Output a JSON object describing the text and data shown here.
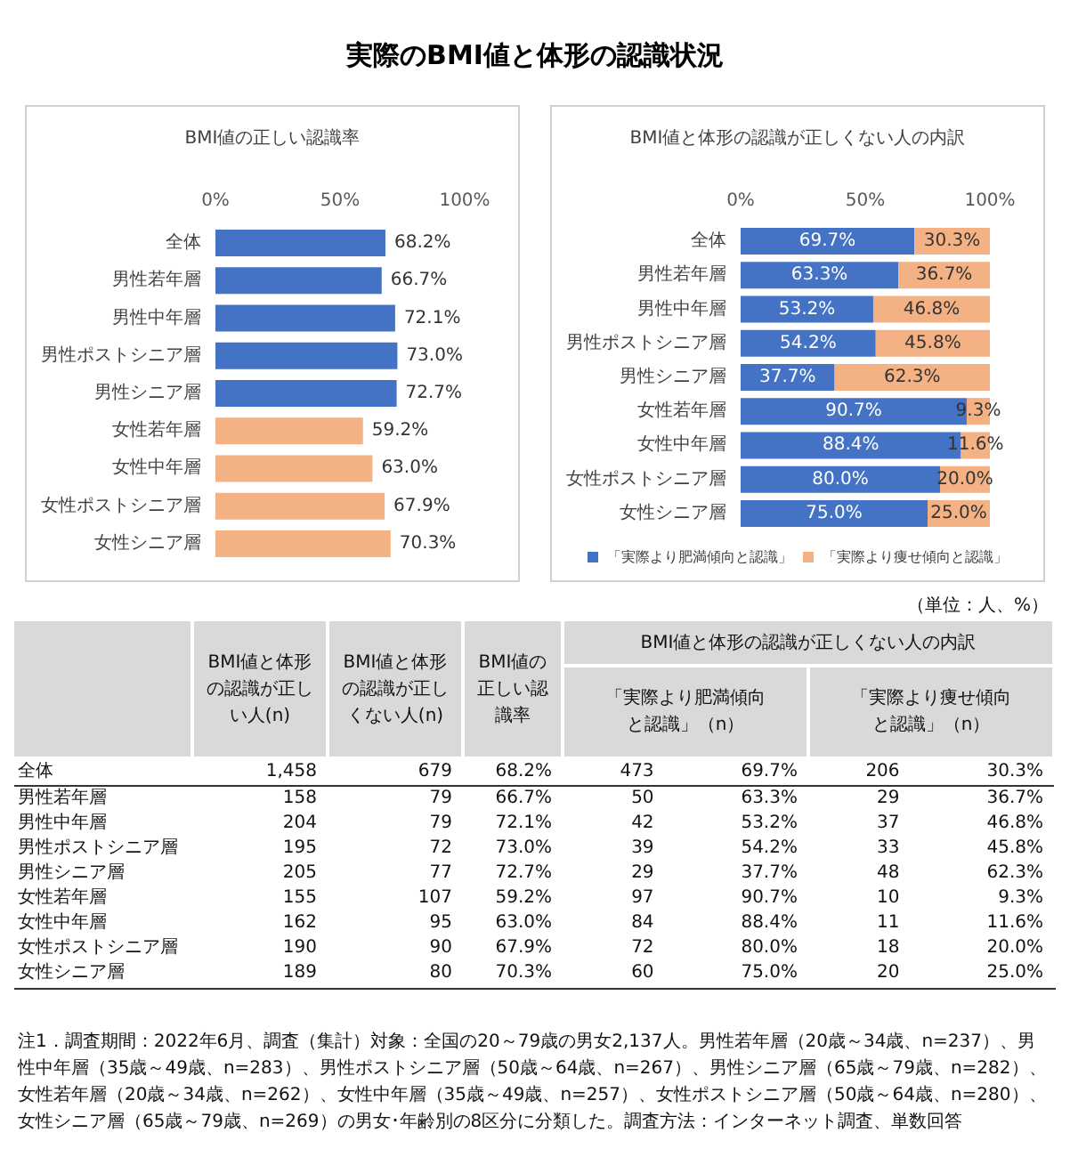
{
  "chart_data": [
    {
      "type": "other",
      "title": "実際のBMI値と体形の認識状況"
    },
    {
      "type": "bar",
      "orientation": "horizontal",
      "title": "BMI値の正しい認識率",
      "categories": [
        "全体",
        "男性若年層",
        "男性中年層",
        "男性ポストシニア層",
        "男性シニア層",
        "女性若年層",
        "女性中年層",
        "女性ポストシニア層",
        "女性シニア層"
      ],
      "values": [
        68.2,
        66.7,
        72.1,
        73.0,
        72.7,
        59.2,
        63.0,
        67.9,
        70.3
      ],
      "colors": [
        "#4472c4",
        "#4472c4",
        "#4472c4",
        "#4472c4",
        "#4472c4",
        "#f4b183",
        "#f4b183",
        "#f4b183",
        "#f4b183"
      ],
      "value_labels": [
        "68.2%",
        "66.7%",
        "72.1%",
        "73.0%",
        "72.7%",
        "59.2%",
        "63.0%",
        "67.9%",
        "70.3%"
      ],
      "xlim": [
        0,
        100
      ],
      "xticks": [
        {
          "value": 0,
          "label": "0%"
        },
        {
          "value": 50,
          "label": "50%"
        },
        {
          "value": 100,
          "label": "100%"
        }
      ],
      "grid": false,
      "legend": false
    },
    {
      "type": "bar",
      "orientation": "horizontal",
      "stacked": true,
      "title": "BMI値と体形の認識が正しくない人の内訳",
      "categories": [
        "全体",
        "男性若年層",
        "男性中年層",
        "男性ポストシニア層",
        "男性シニア層",
        "女性若年層",
        "女性中年層",
        "女性ポストシニア層",
        "女性シニア層"
      ],
      "series": [
        {
          "name": "「実際より肥満傾向と認識」",
          "color": "#4472c4",
          "values": [
            69.7,
            63.3,
            53.2,
            54.2,
            37.7,
            90.7,
            88.4,
            80.0,
            75.0
          ],
          "value_labels": [
            "69.7%",
            "63.3%",
            "53.2%",
            "54.2%",
            "37.7%",
            "90.7%",
            "88.4%",
            "80.0%",
            "75.0%"
          ]
        },
        {
          "name": "「実際より痩せ傾向と認識」",
          "color": "#f4b183",
          "values": [
            30.3,
            36.7,
            46.8,
            45.8,
            62.3,
            9.3,
            11.6,
            20.0,
            25.0
          ],
          "value_labels": [
            "30.3%",
            "36.7%",
            "46.8%",
            "45.8%",
            "62.3%",
            "9.3%",
            "11.6%",
            "20.0%",
            "25.0%"
          ]
        }
      ],
      "xlim": [
        0,
        100
      ],
      "xticks": [
        {
          "value": 0,
          "label": "0%"
        },
        {
          "value": 50,
          "label": "50%"
        },
        {
          "value": 100,
          "label": "100%"
        }
      ],
      "grid": false,
      "legend": "bottom"
    },
    {
      "type": "other",
      "subtitle": "BMI値と体形の認識が正しくない人の内訳",
      "categories": [
        "全体",
        "男性若年層",
        "男性中年層",
        "男性ポストシニア層",
        "男性シニア層",
        "女性若年層",
        "女性中年層",
        "女性ポストシニア層",
        "女性シニア層"
      ],
      "series": [
        {
          "name": "BMI値と体形の認識が正しい人(n)",
          "values": [
            1458,
            158,
            204,
            195,
            205,
            155,
            162,
            190,
            189
          ],
          "value_labels": [
            "1,458",
            "158",
            "204",
            "195",
            "205",
            "155",
            "162",
            "190",
            "189"
          ]
        },
        {
          "name": "BMI値と体形の認識が正しくない人(n)",
          "values": [
            679,
            79,
            79,
            72,
            77,
            107,
            95,
            90,
            80
          ],
          "value_labels": [
            "679",
            "79",
            "79",
            "72",
            "77",
            "107",
            "95",
            "90",
            "80"
          ]
        },
        {
          "name": "BMI値の正しい認識率",
          "values": [
            68.2,
            66.7,
            72.1,
            73.0,
            72.7,
            59.2,
            63.0,
            67.9,
            70.3
          ],
          "value_labels": [
            "68.2%",
            "66.7%",
            "72.1%",
            "73.0%",
            "72.7%",
            "59.2%",
            "63.0%",
            "67.9%",
            "70.3%"
          ]
        },
        {
          "name": "「実際より肥満傾向と認識」（n）",
          "values": [
            473,
            50,
            42,
            39,
            29,
            97,
            84,
            72,
            60
          ],
          "value_labels": [
            "473",
            "50",
            "42",
            "39",
            "29",
            "97",
            "84",
            "72",
            "60"
          ]
        },
        {
          "values": [
            69.7,
            63.3,
            53.2,
            54.2,
            37.7,
            90.7,
            88.4,
            80.0,
            75.0
          ],
          "value_labels": [
            "69.7%",
            "63.3%",
            "53.2%",
            "54.2%",
            "37.7%",
            "90.7%",
            "88.4%",
            "80.0%",
            "75.0%"
          ]
        },
        {
          "name": "「実際より痩せ傾向と認識」（n）",
          "values": [
            206,
            29,
            37,
            33,
            48,
            10,
            11,
            18,
            20
          ],
          "value_labels": [
            "206",
            "29",
            "37",
            "33",
            "48",
            "10",
            "11",
            "18",
            "20"
          ]
        },
        {
          "values": [
            30.3,
            36.7,
            46.8,
            45.8,
            62.3,
            9.3,
            11.6,
            20.0,
            25.0
          ],
          "value_labels": [
            "30.3%",
            "36.7%",
            "46.8%",
            "45.8%",
            "62.3%",
            "9.3%",
            "11.6%",
            "20.0%",
            "25.0%"
          ]
        }
      ],
      "annotations": [
        "（単位：人、%）",
        "注1．調査期間：2022年6月、調査（集計）対象：全国の20～79歳の男女2,137人。男性若年層（20歳～34歳、n=237）、男性中年層（35歳～49歳、n=283）、男性ポストシニア層（50歳～64歳、n=267）、男性シニア層（65歳～79歳、n=282）、女性若年層（20歳～34歳、n=262）、女性中年層（35歳～49歳、n=257）、女性ポストシニア層（50歳～64歳、n=280）、女性シニア層（65歳～79歳、n=269）の男女･年齢別の8区分に分類した。調査方法：インターネット調査、単数回答"
      ]
    }
  ]
}
